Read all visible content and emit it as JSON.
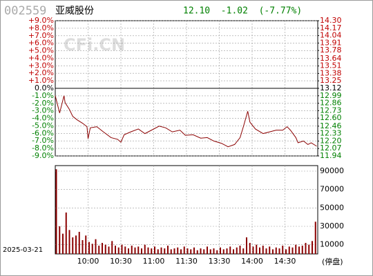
{
  "header": {
    "code": "002559",
    "name": "亚威股份",
    "quote": "12.10  -1.02  (-7.77%)",
    "watermark": "CFi.CN",
    "date": "2025-03-21",
    "status": "(停盘)"
  },
  "chart_data": [
    {
      "type": "line",
      "xlim": [
        0,
        240
      ],
      "xticks": [
        30,
        60,
        90,
        120,
        150,
        180,
        210
      ],
      "grid": true,
      "ylim": [
        -9,
        9
      ],
      "yticks": [
        {
          "value": 9,
          "label": "+9.0%"
        },
        {
          "value": 8,
          "label": "+8.0%"
        },
        {
          "value": 7,
          "label": "+7.0%"
        },
        {
          "value": 6,
          "label": "+6.0%"
        },
        {
          "value": 5,
          "label": "+5.0%"
        },
        {
          "value": 4,
          "label": "+4.0%"
        },
        {
          "value": 3,
          "label": "+3.0%"
        },
        {
          "value": 2,
          "label": "+2.0%"
        },
        {
          "value": 1,
          "label": "+1.0%"
        },
        {
          "value": 0,
          "label": "0.0%"
        },
        {
          "value": -1,
          "label": "-1.0%"
        },
        {
          "value": -2,
          "label": "-2.0%"
        },
        {
          "value": -3,
          "label": "-3.0%"
        },
        {
          "value": -4,
          "label": "-4.0%"
        },
        {
          "value": -5,
          "label": "-5.0%"
        },
        {
          "value": -6,
          "label": "-6.0%"
        },
        {
          "value": -7,
          "label": "-7.0%"
        },
        {
          "value": -8,
          "label": "-8.0%"
        },
        {
          "value": -9,
          "label": "-9.0%"
        }
      ],
      "y2lim": [
        11.94,
        14.3
      ],
      "y2ticks": [
        {
          "value": 14.3,
          "label": "14.30"
        },
        14.17,
        14.04,
        13.91,
        13.78,
        13.64,
        13.51,
        13.38,
        13.25,
        13.12,
        12.99,
        12.86,
        12.73,
        {
          "value": 12.6,
          "label": "12.60"
        },
        12.46,
        12.33,
        {
          "value": 12.2,
          "label": "12.20"
        },
        12.07,
        11.94
      ],
      "series": [
        {
          "color": "#8b0000",
          "axis": "y2",
          "x": [
            0,
            4,
            8,
            9,
            13,
            16,
            20,
            25,
            29,
            30,
            32,
            38,
            44,
            51,
            57,
            60,
            63,
            69,
            76,
            82,
            88,
            95,
            101,
            107,
            114,
            119,
            126,
            133,
            139,
            145,
            152,
            158,
            164,
            169,
            172,
            176,
            178,
            183,
            190,
            196,
            202,
            208,
            212,
            215,
            220,
            222,
            227,
            231,
            234,
            239
          ],
          "values": [
            12.99,
            12.69,
            12.99,
            12.87,
            12.75,
            12.63,
            12.57,
            12.51,
            12.45,
            12.24,
            12.43,
            12.45,
            12.36,
            12.26,
            12.23,
            12.18,
            12.31,
            12.36,
            12.41,
            12.33,
            12.39,
            12.46,
            12.43,
            12.36,
            12.39,
            12.3,
            12.31,
            12.25,
            12.26,
            12.2,
            12.16,
            12.1,
            12.14,
            12.26,
            12.45,
            12.72,
            12.53,
            12.41,
            12.33,
            12.36,
            12.39,
            12.39,
            12.45,
            12.39,
            12.26,
            12.17,
            12.2,
            12.14,
            12.17,
            12.11
          ]
        }
      ]
    },
    {
      "type": "bar",
      "xlim": [
        0,
        240
      ],
      "grid": true,
      "xticks": [
        {
          "value": 30,
          "label": "10:00"
        },
        {
          "value": 60,
          "label": "10:30"
        },
        {
          "value": 90,
          "label": "11:00"
        },
        {
          "value": 120,
          "label": "11:30"
        },
        {
          "value": 150,
          "label": "13:30"
        },
        {
          "value": 180,
          "label": "14:00"
        },
        {
          "value": 210,
          "label": "14:30"
        }
      ],
      "ylim": [
        0,
        96000
      ],
      "yticks": [
        90000,
        70000,
        50000,
        30000,
        10000
      ],
      "color": "#8b0000",
      "x": [
        0,
        3,
        6,
        9,
        12,
        15,
        18,
        21,
        24,
        27,
        30,
        33,
        36,
        39,
        42,
        45,
        48,
        51,
        54,
        57,
        60,
        63,
        66,
        69,
        72,
        75,
        78,
        81,
        84,
        87,
        90,
        93,
        96,
        99,
        102,
        105,
        108,
        111,
        114,
        117,
        120,
        123,
        126,
        129,
        132,
        135,
        138,
        141,
        144,
        147,
        150,
        153,
        156,
        159,
        162,
        165,
        168,
        171,
        174,
        177,
        180,
        183,
        186,
        189,
        192,
        195,
        198,
        201,
        204,
        207,
        210,
        213,
        216,
        219,
        222,
        225,
        228,
        231,
        234,
        237
      ],
      "values": [
        92000,
        30000,
        22000,
        45000,
        26000,
        18000,
        20000,
        24000,
        15000,
        20000,
        13000,
        11000,
        16000,
        9000,
        12000,
        10000,
        8000,
        14000,
        9000,
        7000,
        10000,
        8000,
        6000,
        9000,
        7000,
        8000,
        6000,
        10000,
        7000,
        6000,
        8000,
        5000,
        7000,
        6000,
        9000,
        5000,
        6000,
        7000,
        5000,
        8000,
        6000,
        5000,
        7000,
        4000,
        6000,
        5000,
        8000,
        5000,
        6000,
        4000,
        7000,
        5000,
        6000,
        8000,
        5000,
        7000,
        9000,
        6000,
        18000,
        12000,
        8000,
        10000,
        7000,
        9000,
        6000,
        8000,
        5000,
        7000,
        6000,
        9000,
        5000,
        8000,
        7000,
        10000,
        8000,
        9000,
        12000,
        10000,
        14000,
        35000
      ]
    }
  ]
}
